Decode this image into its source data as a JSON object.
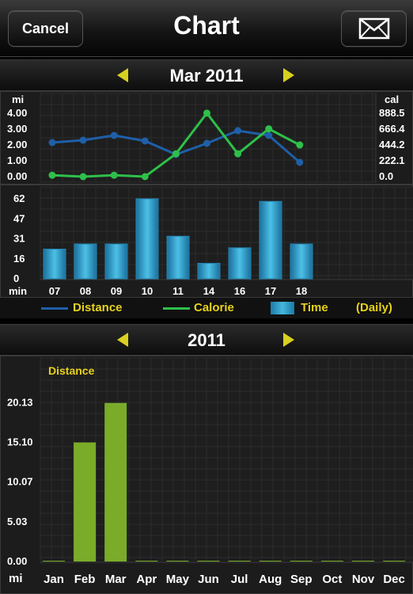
{
  "navbar": {
    "cancel_label": "Cancel",
    "title": "Chart",
    "mail_icon": "envelope-icon"
  },
  "monthly": {
    "period_label": "Mar 2011",
    "legend": {
      "distance": "Distance",
      "calorie": "Calorie",
      "time": "Time",
      "mode": "(Daily)"
    },
    "colors": {
      "distance": "#1f5fa8",
      "calorie": "#2ec04a",
      "time": "#2f9ccc",
      "axis_label": "#ffffff",
      "legend_text": "#e6d21a"
    }
  },
  "yearly": {
    "period_label": "2011",
    "colors": {
      "bars": "#7aac2a",
      "title": "#e6d21a"
    }
  },
  "chart_data": [
    {
      "type": "line",
      "categories": [
        "07",
        "08",
        "09",
        "10",
        "11",
        "14",
        "16",
        "17",
        "18"
      ],
      "ylabel": "mi",
      "y2label": "cal",
      "yticks": [
        "0.00",
        "1.00",
        "2.00",
        "3.00",
        "4.00"
      ],
      "y2ticks": [
        "0.0",
        "222.1",
        "444.2",
        "666.4",
        "888.5"
      ],
      "ylim": [
        0,
        4
      ],
      "y2lim": [
        0,
        888.5
      ],
      "grid": true,
      "series": [
        {
          "name": "Distance",
          "axis": "left",
          "values": [
            2.15,
            2.3,
            2.6,
            2.25,
            1.4,
            2.1,
            2.9,
            2.6,
            0.9
          ]
        },
        {
          "name": "Calorie",
          "axis": "right",
          "values": [
            20,
            0,
            20,
            0,
            320,
            890,
            320,
            670,
            444
          ]
        }
      ]
    },
    {
      "type": "bar",
      "categories": [
        "07",
        "08",
        "09",
        "10",
        "11",
        "14",
        "16",
        "17",
        "18"
      ],
      "xlabel": "min",
      "yticks": [
        "0",
        "16",
        "31",
        "47",
        "62"
      ],
      "ylim": [
        0,
        62
      ],
      "grid": true,
      "series": [
        {
          "name": "Time",
          "values": [
            23,
            27,
            27,
            62,
            33,
            12,
            24,
            60,
            27
          ]
        }
      ]
    },
    {
      "type": "bar",
      "title": "Distance",
      "categories": [
        "Jan",
        "Feb",
        "Mar",
        "Apr",
        "May",
        "Jun",
        "Jul",
        "Aug",
        "Sep",
        "Oct",
        "Nov",
        "Dec"
      ],
      "xlabel": "mi",
      "yticks": [
        "0.00",
        "5.03",
        "10.07",
        "15.10",
        "20.13"
      ],
      "ylim": [
        0,
        25.2
      ],
      "grid": true,
      "values": [
        0,
        15.0,
        20.0,
        0,
        0,
        0,
        0,
        0,
        0,
        0,
        0,
        0
      ]
    }
  ]
}
